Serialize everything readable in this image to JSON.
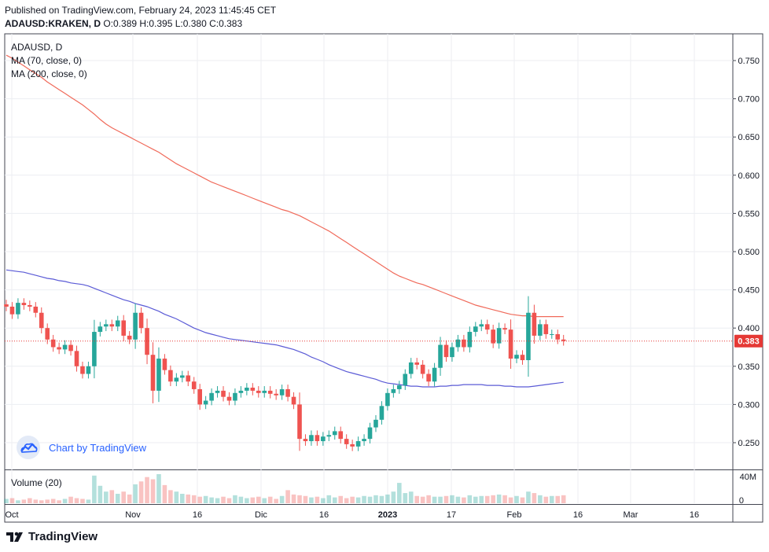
{
  "header": {
    "published": "Published on TradingView.com, February 24, 2023 11:45:45 CET",
    "symbol_line": "ADAUSD:KRAKEN, D",
    "ohlc": "O:0.389 H:0.395 L:0.380 C:0.383"
  },
  "legend": {
    "symbol": "ADAUSD, D",
    "ma70": "MA (70, close, 0)",
    "ma200": "MA (200, close, 0)"
  },
  "volume_label": "Volume (20)",
  "watermark": "Chart by TradingView",
  "footer_brand": "TradingView",
  "colors": {
    "up": "#26a69a",
    "down": "#ef5350",
    "ma70": "#5b5bd6",
    "ma200": "#f06a5a",
    "last": "#e53935"
  },
  "chart_data": {
    "type": "candlestick",
    "x_labels": [
      "Oct",
      "Nov",
      "16",
      "Dic",
      "16",
      "2023",
      "17",
      "Feb",
      "16",
      "Mar",
      "16"
    ],
    "y_ticks": [
      0.25,
      0.3,
      0.35,
      0.4,
      0.45,
      0.5,
      0.55,
      0.6,
      0.65,
      0.7,
      0.75
    ],
    "y_tick_labels": [
      "0.250",
      "0.300",
      "0.350",
      "0.400",
      "0.450",
      "0.500",
      "0.550",
      "0.600",
      "0.650",
      "0.700",
      "0.750"
    ],
    "ylim": [
      0.215,
      0.785
    ],
    "volume_ticks": [
      "40M",
      "0"
    ],
    "last_price": 0.383,
    "last_price_label": "0.383",
    "closes": [
      0.428,
      0.418,
      0.433,
      0.43,
      0.428,
      0.42,
      0.4,
      0.385,
      0.375,
      0.372,
      0.378,
      0.37,
      0.35,
      0.34,
      0.35,
      0.395,
      0.402,
      0.405,
      0.402,
      0.41,
      0.39,
      0.385,
      0.42,
      0.4,
      0.365,
      0.318,
      0.36,
      0.345,
      0.33,
      0.335,
      0.338,
      0.33,
      0.32,
      0.3,
      0.305,
      0.315,
      0.318,
      0.31,
      0.305,
      0.315,
      0.318,
      0.322,
      0.318,
      0.315,
      0.318,
      0.314,
      0.312,
      0.32,
      0.31,
      0.3,
      0.255,
      0.252,
      0.26,
      0.252,
      0.258,
      0.26,
      0.265,
      0.255,
      0.248,
      0.245,
      0.252,
      0.255,
      0.27,
      0.28,
      0.298,
      0.315,
      0.32,
      0.325,
      0.34,
      0.355,
      0.352,
      0.34,
      0.33,
      0.348,
      0.378,
      0.362,
      0.375,
      0.385,
      0.375,
      0.395,
      0.402,
      0.405,
      0.398,
      0.38,
      0.4,
      0.398,
      0.36,
      0.365,
      0.358,
      0.42,
      0.39,
      0.405,
      0.392,
      0.392,
      0.385,
      0.383
    ],
    "volumes": [
      6,
      7,
      4,
      5,
      7,
      5,
      4,
      5,
      6,
      4,
      6,
      9,
      7,
      6,
      5,
      38,
      24,
      16,
      18,
      13,
      16,
      12,
      26,
      30,
      36,
      33,
      40,
      25,
      18,
      16,
      13,
      12,
      11,
      9,
      10,
      8,
      7,
      9,
      7,
      11,
      9,
      7,
      8,
      9,
      7,
      9,
      6,
      10,
      18,
      12,
      11,
      10,
      8,
      9,
      7,
      11,
      8,
      10,
      7,
      9,
      8,
      10,
      9,
      11,
      10,
      12,
      16,
      28,
      14,
      16,
      10,
      9,
      11,
      9,
      9,
      10,
      11,
      9,
      8,
      11,
      9,
      10,
      10,
      11,
      12,
      11,
      8,
      10,
      8,
      16,
      14,
      11,
      9,
      10,
      10,
      11
    ],
    "ma70": [
      0.476,
      0.475,
      0.474,
      0.473,
      0.471,
      0.469,
      0.467,
      0.465,
      0.464,
      0.462,
      0.461,
      0.459,
      0.458,
      0.457,
      0.455,
      0.452,
      0.449,
      0.446,
      0.443,
      0.44,
      0.437,
      0.435,
      0.432,
      0.43,
      0.428,
      0.425,
      0.422,
      0.418,
      0.415,
      0.412,
      0.408,
      0.404,
      0.4,
      0.397,
      0.394,
      0.392,
      0.39,
      0.388,
      0.386,
      0.385,
      0.384,
      0.383,
      0.382,
      0.381,
      0.38,
      0.379,
      0.378,
      0.376,
      0.374,
      0.372,
      0.369,
      0.366,
      0.362,
      0.359,
      0.356,
      0.352,
      0.349,
      0.346,
      0.343,
      0.341,
      0.339,
      0.337,
      0.335,
      0.333,
      0.33,
      0.328,
      0.327,
      0.326,
      0.325,
      0.324,
      0.324,
      0.323,
      0.323,
      0.323,
      0.324,
      0.324,
      0.325,
      0.325,
      0.326,
      0.326,
      0.326,
      0.326,
      0.325,
      0.325,
      0.325,
      0.324,
      0.324,
      0.323,
      0.323,
      0.323,
      0.324,
      0.325,
      0.326,
      0.327,
      0.328,
      0.329
    ],
    "ma200": [
      0.757,
      0.753,
      0.748,
      0.743,
      0.738,
      0.733,
      0.728,
      0.722,
      0.717,
      0.712,
      0.707,
      0.702,
      0.697,
      0.692,
      0.686,
      0.68,
      0.673,
      0.667,
      0.662,
      0.658,
      0.654,
      0.65,
      0.646,
      0.642,
      0.638,
      0.634,
      0.63,
      0.625,
      0.62,
      0.615,
      0.611,
      0.607,
      0.603,
      0.599,
      0.595,
      0.591,
      0.588,
      0.585,
      0.582,
      0.579,
      0.576,
      0.573,
      0.57,
      0.567,
      0.564,
      0.561,
      0.558,
      0.555,
      0.553,
      0.55,
      0.547,
      0.543,
      0.539,
      0.535,
      0.531,
      0.527,
      0.522,
      0.517,
      0.512,
      0.507,
      0.502,
      0.497,
      0.492,
      0.487,
      0.482,
      0.477,
      0.472,
      0.468,
      0.465,
      0.462,
      0.459,
      0.457,
      0.454,
      0.451,
      0.448,
      0.445,
      0.442,
      0.439,
      0.436,
      0.433,
      0.43,
      0.428,
      0.426,
      0.424,
      0.422,
      0.42,
      0.418,
      0.417,
      0.416,
      0.416,
      0.415,
      0.415,
      0.415,
      0.415,
      0.415,
      0.415
    ]
  }
}
